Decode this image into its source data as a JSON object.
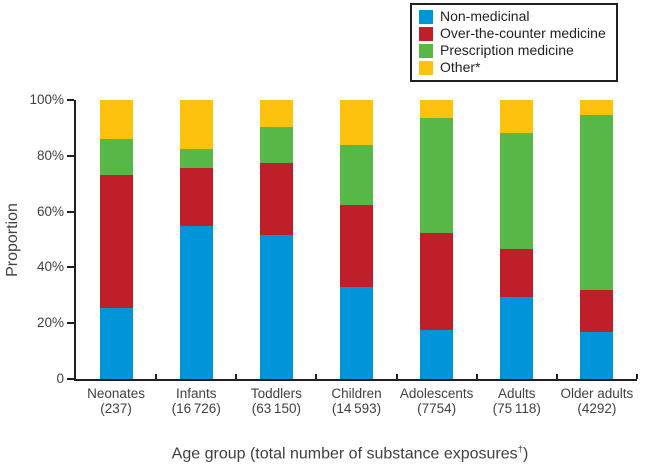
{
  "chart_data": {
    "type": "bar",
    "stacked": true,
    "title": "",
    "xlabel_main": "Age group (total number of substance exposures",
    "xlabel_sup": "†",
    "xlabel_end": ")",
    "ylabel": "Proportion",
    "ylim": [
      0,
      100
    ],
    "grid": false,
    "legend_position": "top-right",
    "yticks": [
      {
        "value": 0,
        "label": "0"
      },
      {
        "value": 20,
        "label": "20%"
      },
      {
        "value": 40,
        "label": "40%"
      },
      {
        "value": 60,
        "label": "60%"
      },
      {
        "value": 80,
        "label": "80%"
      },
      {
        "value": 100,
        "label": "100%"
      }
    ],
    "categories": [
      "Neonates",
      "Infants",
      "Toddlers",
      "Children",
      "Adolescents",
      "Adults",
      "Older adults"
    ],
    "category_totals": [
      "(237)",
      "(16 726)",
      "(63 150)",
      "(14 593)",
      "(7754)",
      "(75 118)",
      "(4292)"
    ],
    "series": [
      {
        "name": "Non-medicinal",
        "color": "#0095d9",
        "values": [
          25.5,
          55.0,
          51.5,
          33.0,
          17.5,
          29.5,
          17.0
        ]
      },
      {
        "name": "Over-the-counter medicine",
        "color": "#bf1f29",
        "values": [
          47.5,
          20.5,
          26.0,
          29.5,
          35.0,
          17.0,
          15.0
        ]
      },
      {
        "name": "Prescription medicine",
        "color": "#58b847",
        "values": [
          13.0,
          7.0,
          13.0,
          21.5,
          41.0,
          41.5,
          62.5
        ]
      },
      {
        "name": "Other*",
        "color": "#fdc20e",
        "values": [
          14.0,
          17.5,
          9.5,
          16.0,
          6.5,
          12.0,
          5.5
        ]
      }
    ]
  },
  "colors": {
    "axis": "#231f20",
    "tick_text": "#414042",
    "legend_text": "#231f20",
    "background": "#ffffff"
  }
}
